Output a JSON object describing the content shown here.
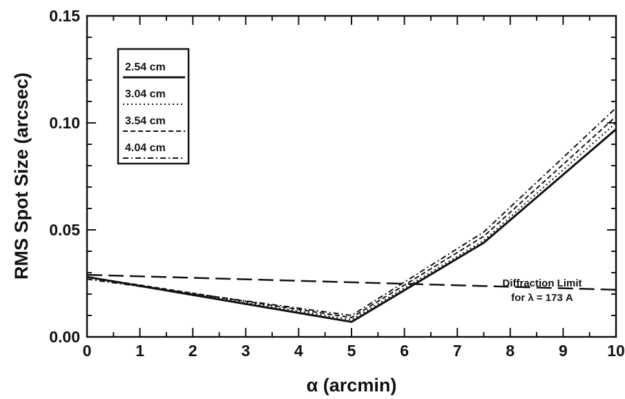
{
  "chart_data": {
    "type": "line",
    "title": "",
    "xlabel": "α (arcmin)",
    "ylabel": "RMS Spot Size (arcsec)",
    "xlim": [
      0,
      10
    ],
    "ylim": [
      0,
      0.15
    ],
    "x_ticks": [
      "0",
      "1",
      "2",
      "3",
      "4",
      "5",
      "6",
      "7",
      "8",
      "9",
      "10"
    ],
    "y_ticks": [
      "0.00",
      "0.05",
      "0.10",
      "0.15"
    ],
    "grid": false,
    "legend_position": "top-left",
    "series": [
      {
        "name": "2.54 cm",
        "style": "solid",
        "x": [
          0,
          5,
          7.5,
          10
        ],
        "y": [
          0.028,
          0.007,
          0.044,
          0.097
        ]
      },
      {
        "name": "3.04 cm",
        "style": "dotted",
        "x": [
          0,
          5,
          7.5,
          10
        ],
        "y": [
          0.028,
          0.008,
          0.045,
          0.1
        ]
      },
      {
        "name": "3.54 cm",
        "style": "dashed",
        "x": [
          0,
          5,
          7.5,
          10
        ],
        "y": [
          0.028,
          0.009,
          0.047,
          0.103
        ]
      },
      {
        "name": "4.04 cm",
        "style": "dashdot",
        "x": [
          0,
          5,
          7.5,
          10
        ],
        "y": [
          0.027,
          0.01,
          0.049,
          0.107
        ]
      }
    ],
    "reference_line": {
      "style": "long-dash",
      "x": [
        0,
        10
      ],
      "y": [
        0.029,
        0.022
      ]
    },
    "annotation": {
      "lines": [
        "Diffraction Limit",
        "for λ = 173 A"
      ]
    }
  }
}
